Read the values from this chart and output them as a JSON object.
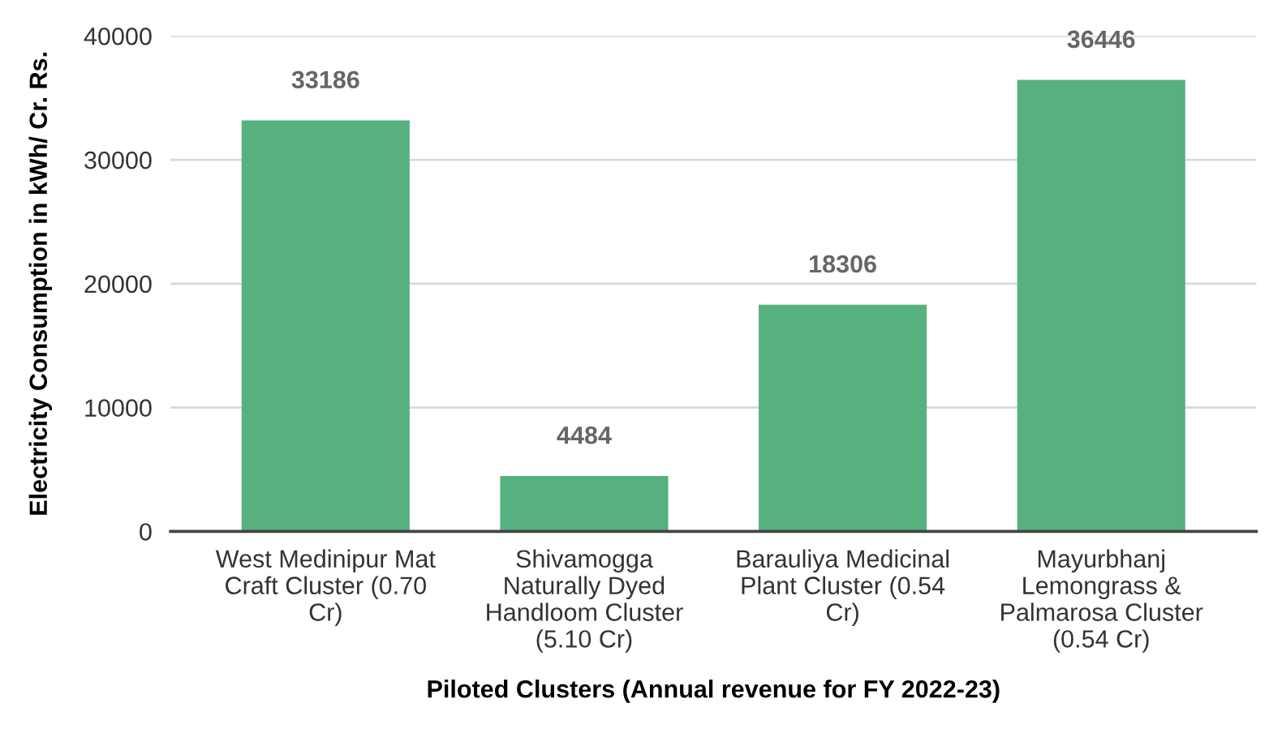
{
  "chart_data": {
    "type": "bar",
    "xlabel": "Piloted Clusters (Annual revenue for FY 2022-23)",
    "ylabel": "Electricity Consumption in kWh/ Cr. Rs.",
    "categories": [
      "West Medinipur Mat Craft Cluster (0.70 Cr)",
      "Shivamogga Naturally Dyed Handloom Cluster (5.10 Cr)",
      "Barauliya Medicinal Plant Cluster (0.54 Cr)",
      "Mayurbhanj Lemongrass & Palmarosa Cluster (0.54 Cr)"
    ],
    "values": [
      33186,
      4484,
      18306,
      36446
    ],
    "color": "#57b17f",
    "ylim": [
      0,
      40000
    ],
    "yticks": [
      0,
      10000,
      20000,
      30000,
      40000
    ],
    "grid": "y",
    "data_labels": true,
    "legend": false
  }
}
